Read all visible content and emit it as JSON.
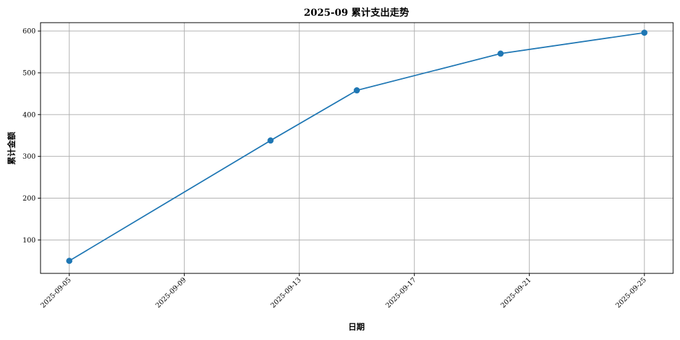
{
  "chart_data": {
    "type": "line",
    "title": "2025-09 累计支出走势",
    "xlabel": "日期",
    "ylabel": "累计金额",
    "x_ticks": [
      "2025-09-05",
      "2025-09-09",
      "2025-09-13",
      "2025-09-17",
      "2025-09-21",
      "2025-09-25"
    ],
    "y_ticks": [
      100,
      200,
      300,
      400,
      500,
      600
    ],
    "xlim": [
      "2025-09-04",
      "2025-09-26"
    ],
    "ylim": [
      20,
      620
    ],
    "grid": true,
    "series": [
      {
        "color": "#1f77b4",
        "marker": "circle",
        "points": [
          {
            "x": "2025-09-05",
            "y": 50
          },
          {
            "x": "2025-09-12",
            "y": 338
          },
          {
            "x": "2025-09-15",
            "y": 458
          },
          {
            "x": "2025-09-20",
            "y": 546
          },
          {
            "x": "2025-09-25",
            "y": 596
          }
        ]
      }
    ]
  }
}
